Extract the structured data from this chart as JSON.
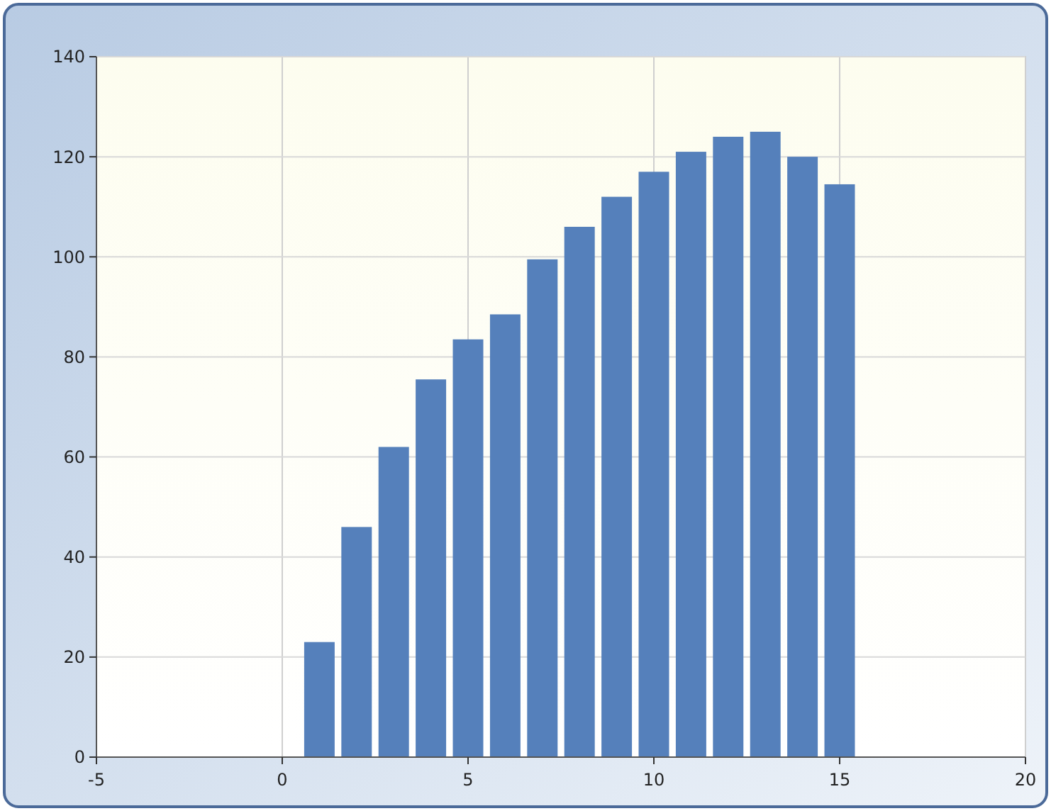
{
  "chart_data": {
    "type": "bar",
    "x": [
      1,
      2,
      3,
      4,
      5,
      6,
      7,
      8,
      9,
      10,
      11,
      12,
      13,
      14,
      15
    ],
    "values": [
      23,
      46,
      62,
      75.5,
      83.5,
      88.5,
      99.5,
      106,
      112,
      117,
      121,
      124,
      125,
      120,
      114.5
    ],
    "color": "#5580bb",
    "xlim": [
      -5,
      20
    ],
    "xticks": [
      -5,
      0,
      5,
      10,
      15,
      20
    ],
    "ylim": [
      0,
      140
    ],
    "yticks": [
      0,
      20,
      40,
      60,
      80,
      100,
      120,
      140
    ],
    "grid": true
  }
}
